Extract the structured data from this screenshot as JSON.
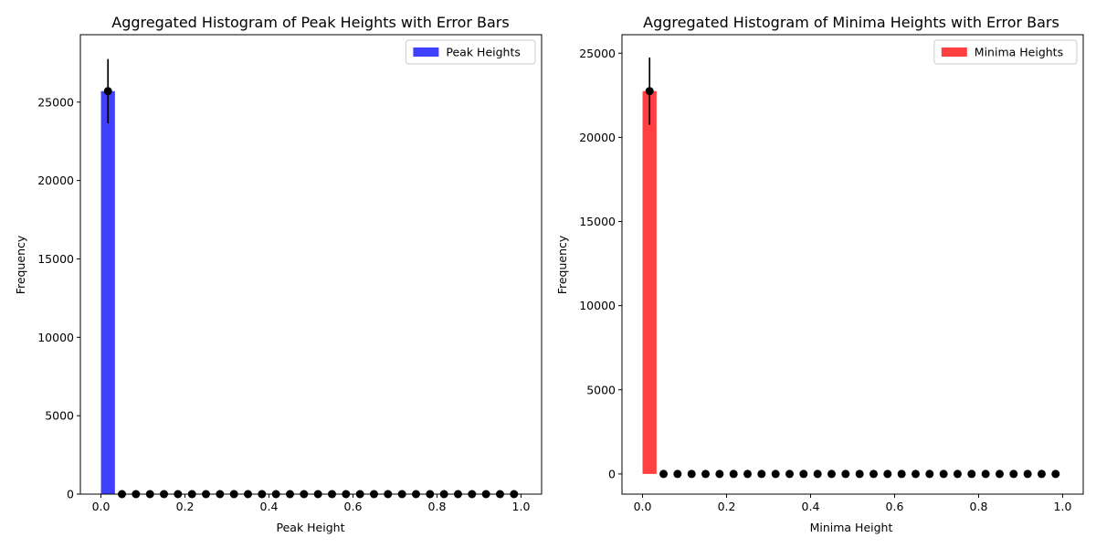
{
  "chart_data": [
    {
      "type": "bar",
      "title": "Aggregated Histogram of Peak Heights with Error Bars",
      "xlabel": "Peak Height",
      "ylabel": "Frequency",
      "xlim": [
        -0.049,
        1.049
      ],
      "ylim": [
        0,
        29300
      ],
      "xticks": [
        0.0,
        0.2,
        0.4,
        0.6,
        0.8,
        1.0
      ],
      "xtick_labels": [
        "0.0",
        "0.2",
        "0.4",
        "0.6",
        "0.8",
        "1.0"
      ],
      "yticks": [
        0,
        5000,
        10000,
        15000,
        20000,
        25000
      ],
      "ytick_labels": [
        "0",
        "5000",
        "10000",
        "15000",
        "20000",
        "25000"
      ],
      "bin_width": 0.0333,
      "bar_color": "#4040ff",
      "legend": {
        "label": "Peak Heights",
        "placement": "upper right"
      },
      "bars": [
        {
          "x_left": 0.0,
          "height": 25700
        }
      ],
      "points": {
        "x": [
          0.0167,
          0.05,
          0.0833,
          0.1167,
          0.15,
          0.1833,
          0.2167,
          0.25,
          0.2833,
          0.3167,
          0.35,
          0.3833,
          0.4167,
          0.45,
          0.4833,
          0.5167,
          0.55,
          0.5833,
          0.6167,
          0.65,
          0.6833,
          0.7167,
          0.75,
          0.7833,
          0.8167,
          0.85,
          0.8833,
          0.9167,
          0.95,
          0.9833
        ],
        "y": [
          25700,
          0,
          0,
          0,
          0,
          0,
          0,
          0,
          0,
          0,
          0,
          0,
          0,
          0,
          0,
          0,
          0,
          0,
          0,
          0,
          0,
          0,
          0,
          0,
          0,
          0,
          0,
          0,
          0,
          0
        ],
        "yerr": [
          2050,
          0,
          0,
          0,
          0,
          0,
          0,
          0,
          0,
          0,
          0,
          0,
          0,
          0,
          0,
          0,
          0,
          0,
          0,
          0,
          0,
          0,
          0,
          0,
          0,
          0,
          0,
          0,
          0,
          0
        ]
      }
    },
    {
      "type": "bar",
      "title": "Aggregated Histogram of Minima Heights with Error Bars",
      "xlabel": "Minima Height",
      "ylabel": "Frequency",
      "xlim": [
        -0.049,
        1.049
      ],
      "ylim": [
        -1200,
        26100
      ],
      "xticks": [
        0.0,
        0.2,
        0.4,
        0.6,
        0.8,
        1.0
      ],
      "xtick_labels": [
        "0.0",
        "0.2",
        "0.4",
        "0.6",
        "0.8",
        "1.0"
      ],
      "yticks": [
        0,
        5000,
        10000,
        15000,
        20000,
        25000
      ],
      "ytick_labels": [
        "0",
        "5000",
        "10000",
        "15000",
        "20000",
        "25000"
      ],
      "bin_width": 0.0333,
      "bar_color": "#ff4040",
      "legend": {
        "label": "Minima Heights",
        "placement": "upper right"
      },
      "bars": [
        {
          "x_left": 0.0,
          "height": 22750
        }
      ],
      "points": {
        "x": [
          0.0167,
          0.05,
          0.0833,
          0.1167,
          0.15,
          0.1833,
          0.2167,
          0.25,
          0.2833,
          0.3167,
          0.35,
          0.3833,
          0.4167,
          0.45,
          0.4833,
          0.5167,
          0.55,
          0.5833,
          0.6167,
          0.65,
          0.6833,
          0.7167,
          0.75,
          0.7833,
          0.8167,
          0.85,
          0.8833,
          0.9167,
          0.95,
          0.9833
        ],
        "y": [
          22750,
          0,
          0,
          0,
          0,
          0,
          0,
          0,
          0,
          0,
          0,
          0,
          0,
          0,
          0,
          0,
          0,
          0,
          0,
          0,
          0,
          0,
          0,
          0,
          0,
          0,
          0,
          0,
          0,
          0
        ],
        "yerr": [
          2000,
          0,
          0,
          0,
          0,
          0,
          0,
          0,
          0,
          0,
          0,
          0,
          0,
          0,
          0,
          0,
          0,
          0,
          0,
          0,
          0,
          0,
          0,
          0,
          0,
          0,
          0,
          0,
          0,
          0
        ]
      }
    }
  ]
}
